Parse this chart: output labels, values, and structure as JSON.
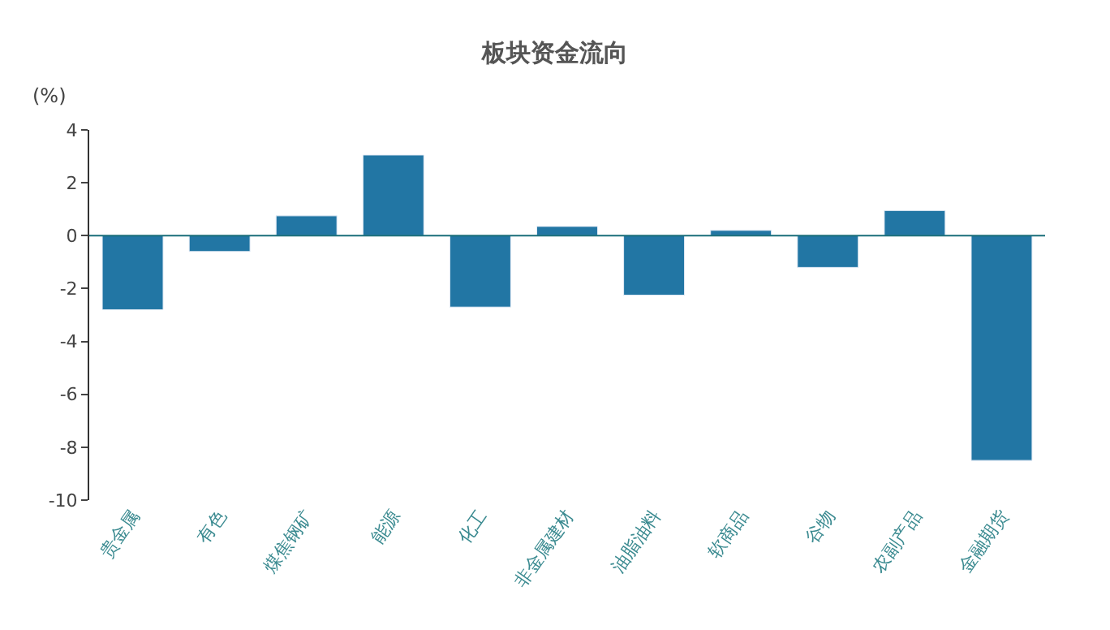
{
  "chart_data": {
    "type": "bar",
    "title": "板块资金流向",
    "ylabel": "(%)",
    "categories": [
      "贵金属",
      "有色",
      "煤焦钢矿",
      "能源",
      "化工",
      "非金属建材",
      "油脂油料",
      "软商品",
      "谷物",
      "农副产品",
      "金融期货"
    ],
    "values": [
      -2.8,
      -0.6,
      0.75,
      3.05,
      -2.7,
      0.35,
      -2.25,
      0.2,
      -1.2,
      0.95,
      -8.5
    ],
    "color": "#2276a4",
    "ylim": [
      -10,
      4
    ],
    "yticks": [
      -10,
      -8,
      -6,
      -4,
      -2,
      0,
      2,
      4
    ],
    "ref_lines": [
      {
        "axis": "y",
        "value": 0,
        "color": "#1a6e7a"
      }
    ]
  }
}
